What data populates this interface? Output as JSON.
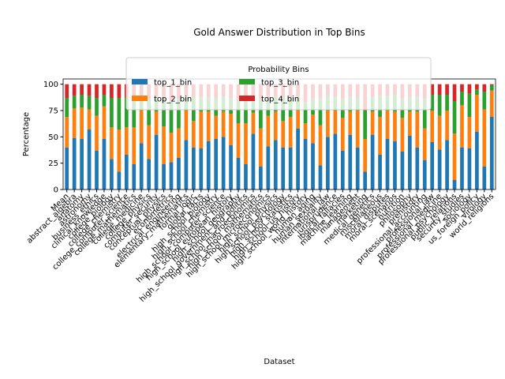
{
  "chart_data": {
    "type": "stacked_bar",
    "title": "Gold Answer Distribution in Top Bins",
    "x_label": "Dataset",
    "y_label": "Percentage",
    "legend_title": "Probability Bins",
    "categories": [
      "Mean",
      "abstract_algebra",
      "anatomy",
      "astronomy",
      "business_ethics",
      "clinical_knowledge",
      "college_biology",
      "college_chemistry",
      "college_computer_science",
      "college_mathematics",
      "college_medicine",
      "college_physics",
      "computer_security",
      "conceptual_physics",
      "econometrics",
      "electrical_engineering",
      "elementary_mathematics",
      "formal_logic",
      "global_facts",
      "high_school_biology",
      "high_school_chemistry",
      "high_school_computer_science",
      "high_school_european_history",
      "high_school_geography",
      "high_school_government_and_politics",
      "high_school_macroeconomics",
      "high_school_mathematics",
      "high_school_microeconomics",
      "high_school_physics",
      "high_school_psychology",
      "high_school_statistics",
      "high_school_us_history",
      "high_school_world_history",
      "human_aging",
      "human_sexuality",
      "international_law",
      "jurisprudence",
      "logical_fallacies",
      "machine_learning",
      "management",
      "marketing",
      "medical_genetics",
      "miscellaneous",
      "moral_disputes",
      "moral_scenarios",
      "nutrition",
      "philosophy",
      "prehistory",
      "professional_accounting",
      "professional_law",
      "professional_medicine",
      "professional_psychology",
      "public_relations",
      "security_studies",
      "sociology",
      "us_foreign_policy",
      "virology",
      "world_religions"
    ],
    "series": [
      {
        "name": "top_1_bin",
        "color": "#1f77b4",
        "values": [
          40,
          49,
          48,
          57,
          37,
          48,
          29,
          17,
          33,
          24,
          44,
          29,
          52,
          24,
          26,
          30,
          47,
          40,
          39,
          46,
          48,
          50,
          42,
          30,
          24,
          53,
          22,
          41,
          47,
          40,
          40,
          58,
          48,
          44,
          23,
          50,
          53,
          37,
          52,
          40,
          17,
          52,
          33,
          48,
          46,
          36,
          51,
          40,
          28,
          45,
          38,
          47,
          9,
          40,
          39,
          55,
          22,
          69
        ]
      },
      {
        "name": "top_2_bin",
        "color": "#ff7f0e",
        "values": [
          29,
          28,
          30,
          19,
          33,
          31,
          30,
          40,
          26,
          35,
          31,
          32,
          22,
          36,
          28,
          28,
          28,
          25,
          35,
          28,
          22,
          24,
          30,
          33,
          39,
          20,
          36,
          29,
          27,
          25,
          29,
          17,
          15,
          27,
          38,
          25,
          22,
          31,
          22,
          35,
          31,
          22,
          36,
          27,
          28,
          32,
          23,
          34,
          30,
          30,
          32,
          28,
          44,
          40,
          30,
          35,
          54,
          25
        ]
      },
      {
        "name": "top_3_bin",
        "color": "#2ca02c",
        "values": [
          18,
          12,
          12,
          13,
          17,
          11,
          28,
          30,
          28,
          28,
          13,
          25,
          14,
          26,
          30,
          28,
          13,
          22,
          14,
          14,
          17,
          14,
          15,
          22,
          23,
          14,
          28,
          16,
          14,
          22,
          18,
          13,
          20,
          15,
          25,
          14,
          13,
          18,
          14,
          12,
          27,
          14,
          20,
          14,
          16,
          18,
          14,
          14,
          28,
          15,
          20,
          15,
          31,
          13,
          22,
          5,
          17,
          5
        ]
      },
      {
        "name": "top_4_bin",
        "color": "#d62728",
        "values": [
          13,
          11,
          10,
          11,
          13,
          10,
          13,
          13,
          13,
          13,
          12,
          14,
          12,
          14,
          16,
          14,
          12,
          13,
          12,
          12,
          13,
          12,
          13,
          15,
          14,
          13,
          14,
          14,
          12,
          13,
          13,
          12,
          17,
          14,
          14,
          11,
          12,
          14,
          12,
          13,
          25,
          12,
          11,
          11,
          10,
          14,
          12,
          12,
          14,
          10,
          10,
          10,
          16,
          7,
          9,
          5,
          7,
          1
        ]
      }
    ],
    "ylim": [
      0,
      105
    ],
    "yticks": [
      0,
      25,
      50,
      75,
      100
    ]
  }
}
